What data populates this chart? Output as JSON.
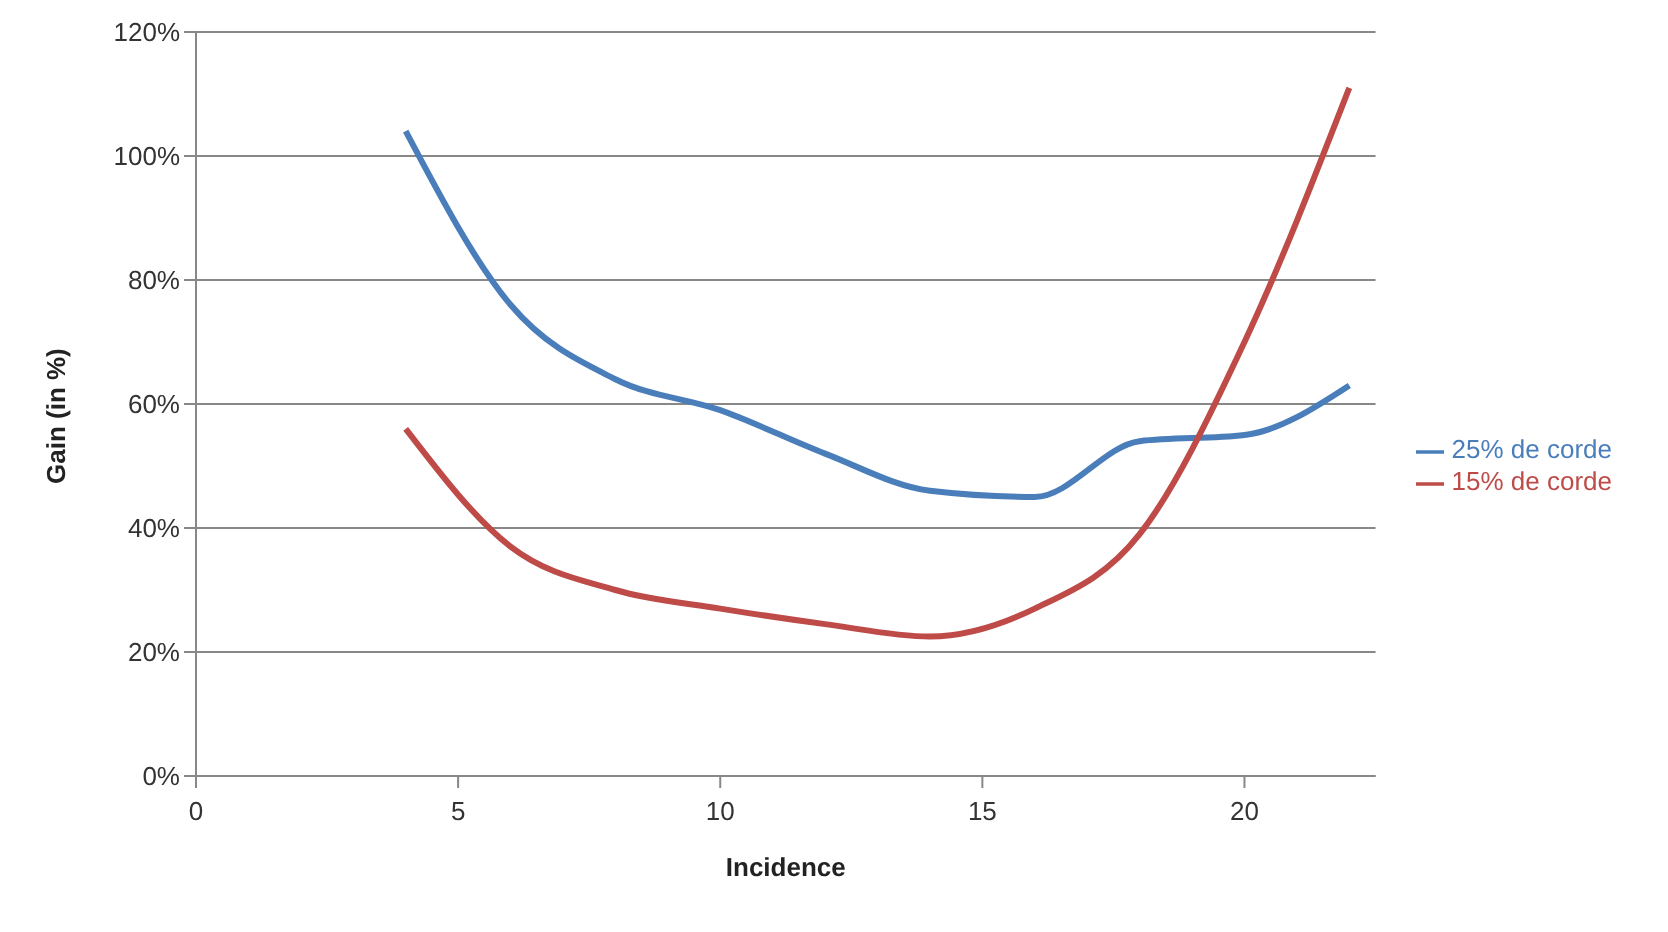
{
  "chart_data": {
    "type": "line",
    "xlabel": "Incidence",
    "ylabel": "Gain (in %)",
    "x": [
      4,
      6,
      8,
      10,
      12,
      14,
      16,
      18,
      20,
      22
    ],
    "series": [
      {
        "name": "25% de corde",
        "color": "#4a7ebb",
        "values": [
          104,
          76,
          64,
          59,
          52,
          46,
          45,
          54,
          55,
          63
        ]
      },
      {
        "name": "15% de corde",
        "color": "#be4b48",
        "values": [
          56,
          37,
          30,
          27,
          24.5,
          22.5,
          27,
          39,
          70,
          111
        ]
      }
    ],
    "xlim": [
      0,
      22.5
    ],
    "xticks": [
      0,
      5,
      10,
      15,
      20
    ],
    "ylim": [
      0,
      120
    ],
    "yticks": [
      {
        "value": 0,
        "label": "0%"
      },
      {
        "value": 20,
        "label": "20%"
      },
      {
        "value": 40,
        "label": "40%"
      },
      {
        "value": 60,
        "label": "60%"
      },
      {
        "value": 80,
        "label": "80%"
      },
      {
        "value": 100,
        "label": "100%"
      },
      {
        "value": 120,
        "label": "120%"
      }
    ],
    "grid": "y",
    "legend": "right",
    "marker": "none",
    "line_style": "solid"
  }
}
